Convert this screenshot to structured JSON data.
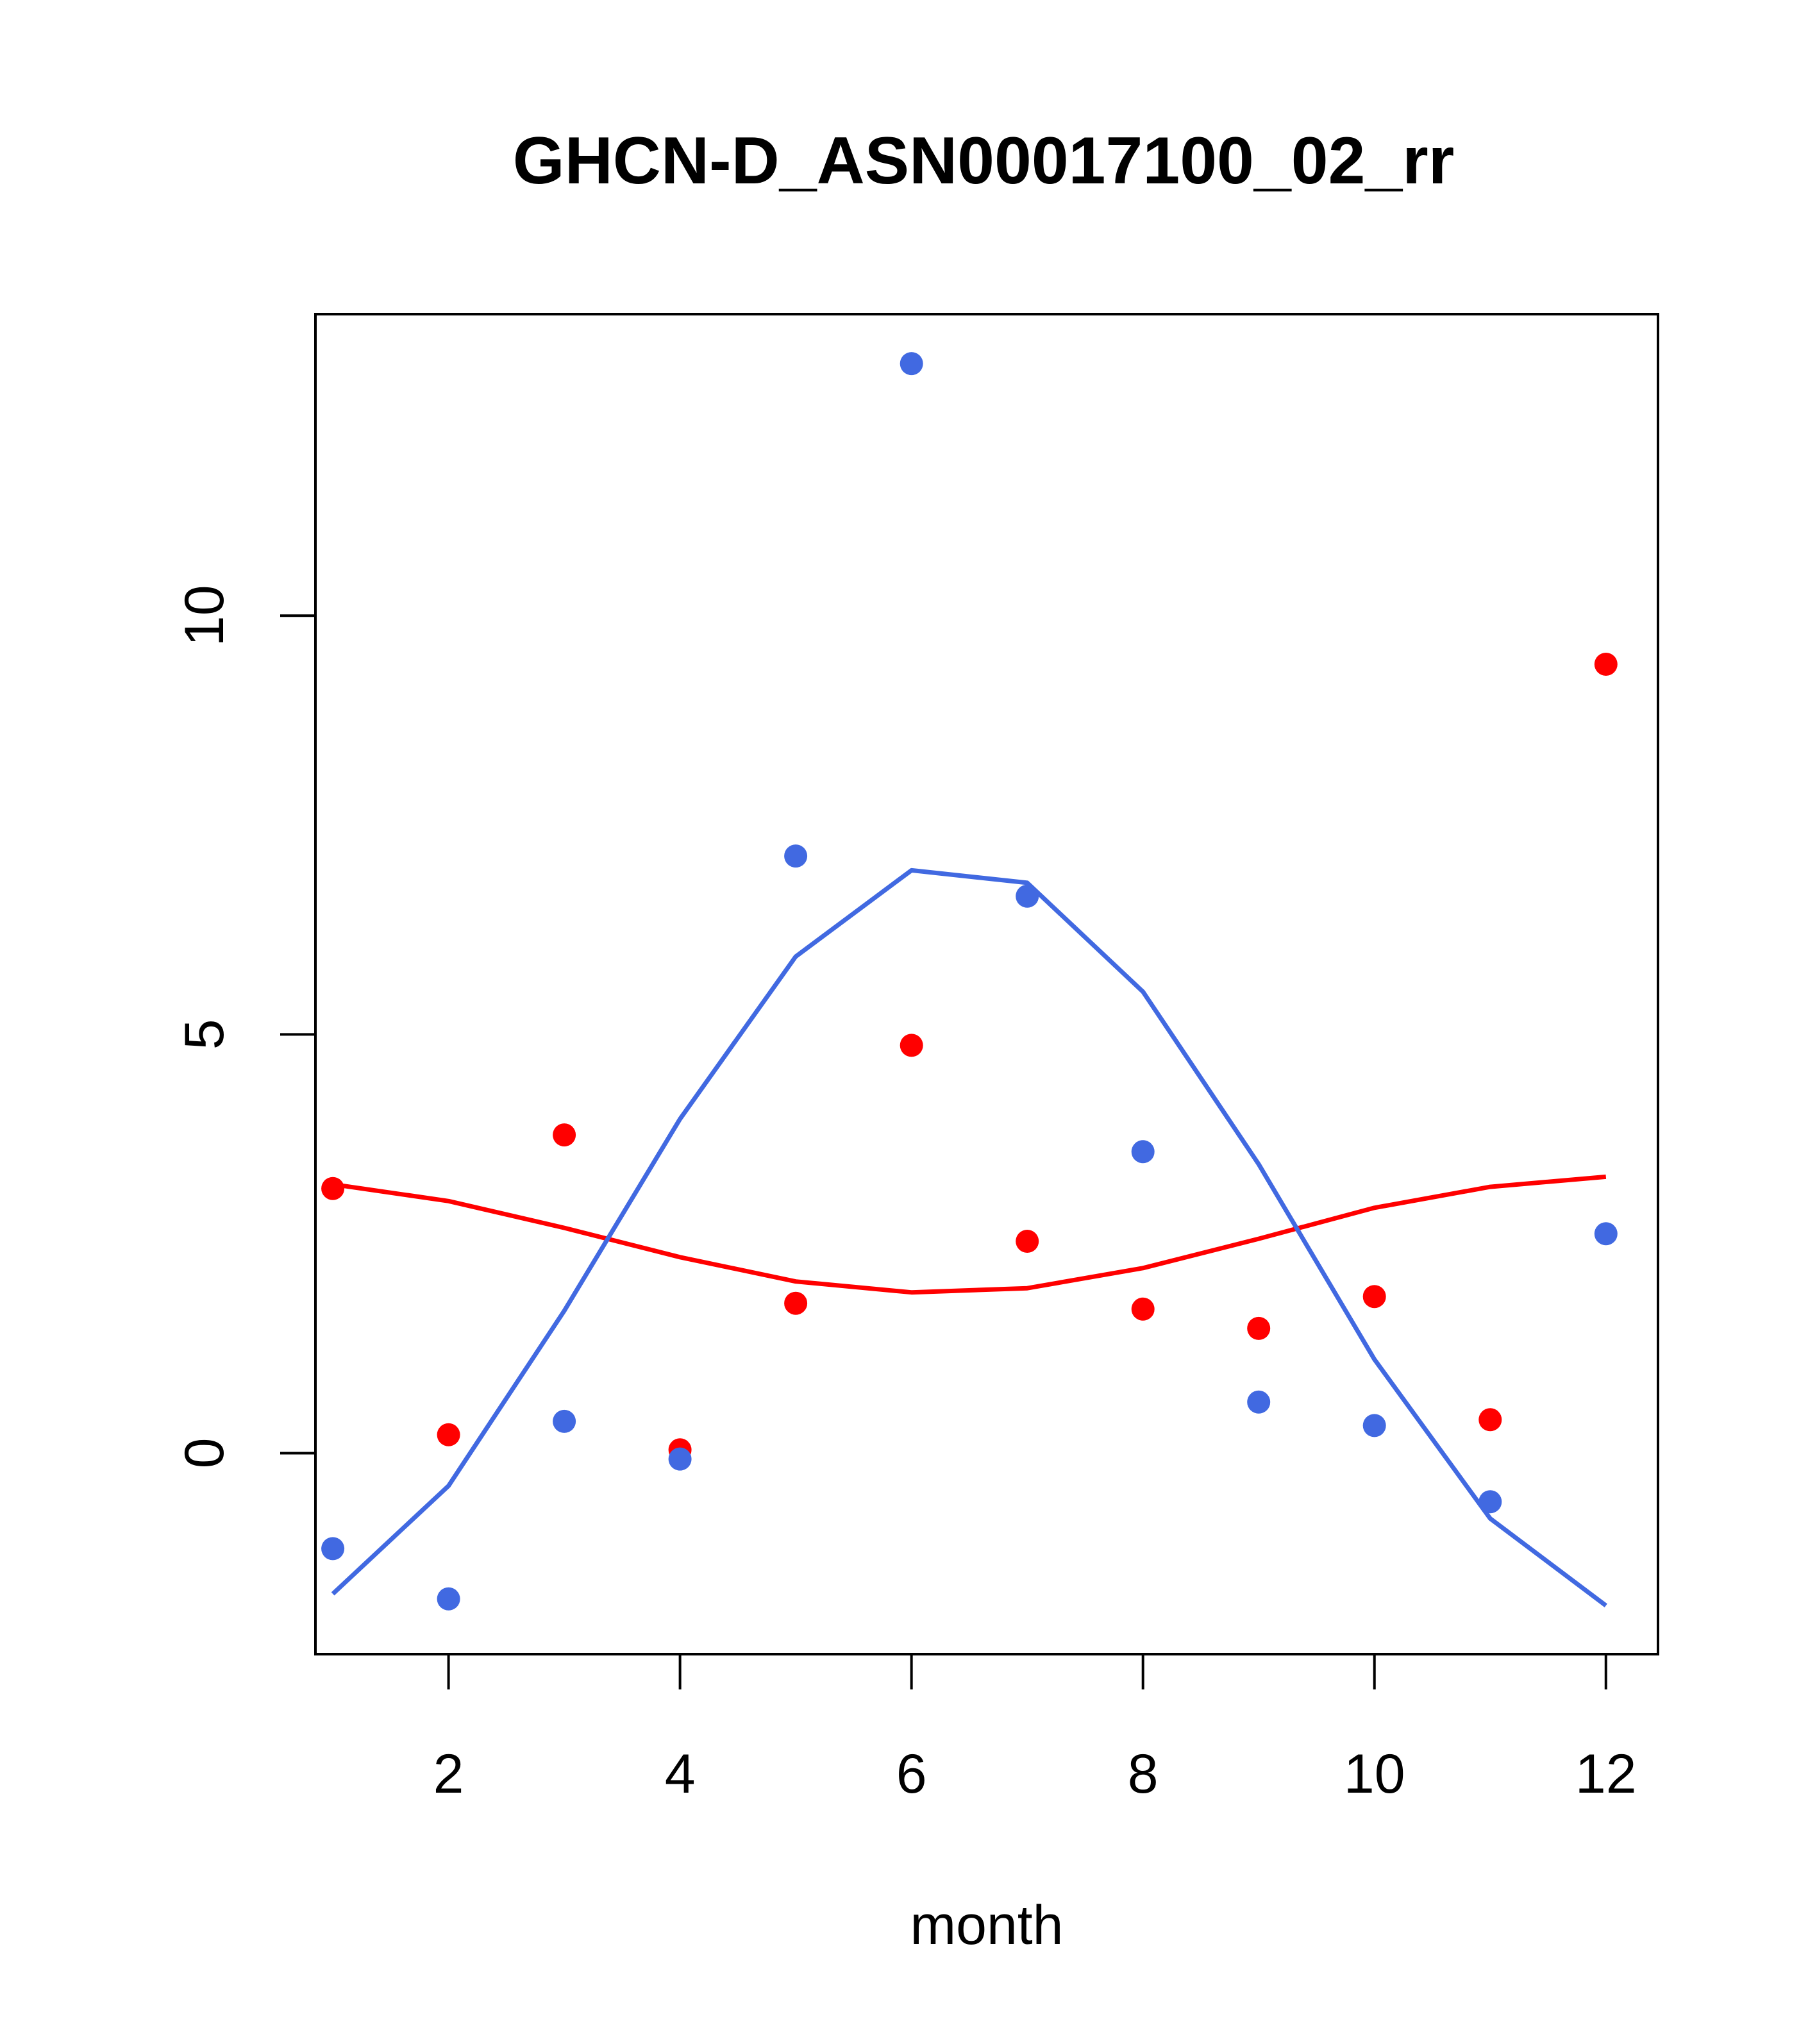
{
  "chart_data": {
    "type": "scatter",
    "title": "GHCN-D_ASN00017100_02_rr",
    "xlabel": "month",
    "ylabel": "",
    "xlim": [
      0.85,
      12.45
    ],
    "ylim": [
      -2.4,
      13.6
    ],
    "xticks": [
      2,
      4,
      6,
      8,
      10,
      12
    ],
    "xtick_labels": [
      "2",
      "4",
      "6",
      "8",
      "10",
      "12"
    ],
    "yticks": [
      0,
      5,
      10
    ],
    "ytick_labels": [
      "0",
      "5",
      "10"
    ],
    "grid": false,
    "x": [
      1,
      2,
      3,
      4,
      5,
      6,
      7,
      8,
      9,
      10,
      11,
      12
    ],
    "series": [
      {
        "color": "#ff0000",
        "points": [
          3.16,
          0.22,
          3.8,
          0.04,
          1.79,
          4.87,
          2.53,
          1.72,
          1.49,
          1.87,
          0.4,
          9.42
        ],
        "line": [
          3.21,
          3.01,
          2.69,
          2.34,
          2.05,
          1.92,
          1.97,
          2.21,
          2.56,
          2.93,
          3.18,
          3.3
        ]
      },
      {
        "color": "#4169e1",
        "points": [
          -1.14,
          -1.74,
          0.38,
          -0.07,
          7.13,
          13.01,
          6.65,
          3.6,
          0.61,
          0.33,
          -0.58,
          2.62
        ],
        "line": [
          -1.68,
          -0.39,
          1.7,
          3.99,
          5.93,
          6.96,
          6.81,
          5.51,
          3.45,
          1.12,
          -0.78,
          -1.82
        ]
      }
    ]
  }
}
